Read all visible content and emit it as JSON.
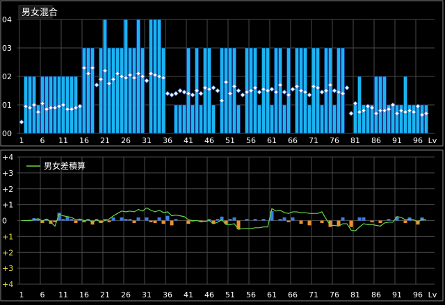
{
  "colors": {
    "background": "#000000",
    "panel_border": "#8a8a8a",
    "grid": "#4a4a4a",
    "axis_text": "#ffffff",
    "top_bar_fill": "#1ab4f0",
    "top_bar_stroke": "#0a2a8c",
    "diamond_fill": "#ffffff",
    "diamond_stroke": "#5a8ad8",
    "male_bar": "#3a7ee6",
    "female_bar": "#f0902a",
    "cumulative_line": "#6ad84a",
    "minus_tick_label": "#f0e04a",
    "title_bg": "#1a1a1a"
  },
  "chart_data": [
    {
      "type": "bar",
      "title": "男女混合",
      "x_tick_labels": [
        "1",
        "6",
        "11",
        "16",
        "21",
        "26",
        "31",
        "36",
        "41",
        "46",
        "51",
        "56",
        "61",
        "66",
        "71",
        "76",
        "81",
        "86",
        "91",
        "96",
        "Lv"
      ],
      "y_tick_labels": [
        "04",
        "03",
        "02",
        "01",
        "00"
      ],
      "ylim": [
        0,
        4
      ],
      "xlim": [
        0,
        100
      ],
      "grid": true,
      "x": [
        1,
        2,
        3,
        4,
        5,
        6,
        7,
        8,
        9,
        10,
        11,
        12,
        13,
        14,
        15,
        16,
        17,
        18,
        19,
        20,
        21,
        22,
        23,
        24,
        25,
        26,
        27,
        28,
        29,
        30,
        31,
        32,
        33,
        34,
        35,
        36,
        37,
        38,
        39,
        40,
        41,
        42,
        43,
        44,
        45,
        46,
        47,
        48,
        49,
        50,
        51,
        52,
        53,
        54,
        55,
        56,
        57,
        58,
        59,
        60,
        61,
        62,
        63,
        64,
        65,
        66,
        67,
        68,
        69,
        70,
        71,
        72,
        73,
        74,
        75,
        76,
        77,
        78,
        79,
        80,
        81,
        82,
        83,
        84,
        85,
        86,
        87,
        88,
        89,
        90,
        91,
        92,
        93,
        94,
        95,
        96,
        97,
        98
      ],
      "bar_values": [
        0,
        2,
        2,
        2,
        1,
        2,
        2,
        2,
        2,
        2,
        2,
        2,
        2,
        2,
        1,
        3,
        3,
        3,
        0,
        3,
        4,
        3,
        3,
        3,
        3,
        4,
        3,
        3,
        4,
        3,
        0,
        4,
        4,
        4,
        3,
        0,
        0,
        1,
        1,
        1,
        3,
        1,
        3,
        1,
        3,
        3,
        1,
        0,
        3,
        3,
        3,
        3,
        1,
        0,
        3,
        3,
        3,
        1,
        3,
        3,
        1,
        3,
        3,
        1,
        3,
        0,
        3,
        3,
        3,
        1,
        3,
        3,
        1,
        3,
        3,
        1,
        3,
        3,
        0,
        0,
        1,
        2,
        1,
        1,
        1,
        2,
        2,
        2,
        1,
        1,
        1,
        1,
        2,
        1,
        1,
        1,
        1,
        1
      ],
      "diamond_values": [
        0.4,
        0.95,
        0.9,
        1.0,
        0.75,
        1.05,
        0.85,
        0.9,
        0.9,
        0.95,
        1.0,
        0.85,
        0.85,
        0.9,
        0.95,
        2.3,
        2.1,
        2.3,
        1.7,
        1.9,
        2.2,
        1.75,
        1.9,
        2.1,
        2.0,
        1.95,
        2.05,
        1.95,
        2.1,
        2.0,
        1.85,
        2.1,
        2.05,
        2.0,
        1.95,
        1.4,
        1.35,
        1.4,
        1.5,
        1.45,
        1.4,
        1.35,
        1.5,
        1.4,
        1.6,
        1.55,
        1.6,
        1.5,
        1.15,
        1.8,
        1.4,
        1.65,
        1.5,
        1.35,
        1.45,
        1.5,
        1.6,
        1.45,
        1.55,
        1.5,
        1.55,
        1.45,
        1.7,
        1.45,
        1.35,
        1.55,
        1.65,
        1.5,
        1.45,
        1.35,
        1.65,
        1.6,
        1.45,
        1.5,
        1.7,
        1.5,
        1.45,
        1.4,
        1.6,
        0.7,
        1.05,
        0.75,
        0.8,
        0.95,
        0.9,
        0.7,
        0.8,
        0.8,
        0.85,
        1.0,
        0.7,
        0.8,
        0.75,
        0.8,
        0.75,
        0.95,
        0.65,
        0.7,
        0.85
      ]
    },
    {
      "type": "bar",
      "title": "",
      "legend": [
        "男女差積算"
      ],
      "legend_placement": "top-left",
      "x_tick_labels": [
        "1",
        "6",
        "11",
        "16",
        "21",
        "26",
        "31",
        "36",
        "41",
        "46",
        "51",
        "56",
        "61",
        "66",
        "71",
        "76",
        "81",
        "86",
        "91",
        "96",
        "Lv"
      ],
      "y_tick_labels": [
        "+4",
        "+3",
        "+2",
        "+1",
        "0",
        "+1",
        "+2",
        "+3",
        "+4"
      ],
      "ylim": [
        -4,
        4
      ],
      "xlim": [
        0,
        100
      ],
      "grid": true,
      "x": [
        1,
        2,
        3,
        4,
        5,
        6,
        7,
        8,
        9,
        10,
        11,
        12,
        13,
        14,
        15,
        16,
        17,
        18,
        19,
        20,
        21,
        22,
        23,
        24,
        25,
        26,
        27,
        28,
        29,
        30,
        31,
        32,
        33,
        34,
        35,
        36,
        37,
        38,
        39,
        40,
        41,
        42,
        43,
        44,
        45,
        46,
        47,
        48,
        49,
        50,
        51,
        52,
        53,
        54,
        55,
        56,
        57,
        58,
        59,
        60,
        61,
        62,
        63,
        64,
        65,
        66,
        67,
        68,
        69,
        70,
        71,
        72,
        73,
        74,
        75,
        76,
        77,
        78,
        79,
        80,
        81,
        82,
        83,
        84,
        85,
        86,
        87,
        88,
        89,
        90,
        91,
        92,
        93,
        94,
        95,
        96,
        97,
        98
      ],
      "diff_values": [
        0,
        0,
        0.05,
        0.15,
        0.1,
        -0.15,
        0.1,
        -0.2,
        -0.1,
        0.5,
        0.1,
        0.25,
        0.1,
        -0.15,
        0.1,
        -0.1,
        0.1,
        -0.25,
        0.1,
        -0.15,
        0.1,
        -0.1,
        0.2,
        0,
        0.2,
        0.1,
        0.1,
        -0.15,
        0.2,
        0,
        0.2,
        -0.1,
        -0.15,
        0.2,
        -0.2,
        0.3,
        -0.3,
        0.1,
        0,
        0,
        -0.2,
        -0.05,
        0,
        -0.1,
        0,
        0.1,
        -0.2,
        0.1,
        0.25,
        -0.2,
        0.1,
        0.2,
        -0.55,
        0,
        0.1,
        0,
        0.1,
        0,
        0.1,
        0,
        0.6,
        0,
        0.1,
        0.2,
        -0.1,
        0.2,
        0,
        -0.2,
        0,
        -0.3,
        0,
        0,
        -0.15,
        0,
        -0.4,
        0,
        -0.35,
        0.2,
        0,
        -0.4,
        0,
        0.2,
        0.2,
        0,
        -0.1,
        0,
        -0.15,
        0,
        0.1,
        0,
        0.25,
        0,
        -0.15,
        0.2,
        0,
        -0.25,
        0.2,
        0
      ],
      "cumulative": [
        0,
        0,
        0,
        0.15,
        0.25,
        0.1,
        0.2,
        0,
        -0.1,
        0.4,
        0.5,
        0.7,
        0.8,
        0.65,
        0.75,
        0.65,
        0.75,
        0.5,
        0.6,
        0.45,
        0.55,
        0.45,
        0.65,
        0.65,
        0.85,
        0.95,
        1.05,
        0.9,
        1.1,
        1.1,
        1.3,
        1.2,
        1.05,
        1.25,
        1.05,
        1.35,
        1.05,
        1.15,
        1.15,
        1.15,
        0.95,
        0.9,
        0.9,
        0.8,
        0.8,
        0.9,
        0.7,
        0.8,
        1.05,
        0.85,
        0.95,
        1.15,
        0.6,
        0.6,
        0.7,
        0.7,
        0.8,
        0.8,
        0.9,
        0.9,
        1.5,
        1.5,
        1.6,
        1.8,
        1.7,
        1.9,
        1.9,
        1.7,
        1.7,
        1.4,
        1.4,
        1.4,
        1.25,
        1.25,
        0.85,
        0.85,
        0.5,
        0.7,
        0.7,
        0.3,
        0.3,
        0.5,
        0.7,
        0.7,
        0.6,
        0.6,
        0.45,
        0.45,
        0.55,
        0.55,
        0.8,
        0.8,
        0.65,
        0.85,
        0.85,
        0.6,
        0.8,
        0.8
      ],
      "cumulative_display": [
        0,
        0,
        0,
        0.05,
        0.12,
        -0.02,
        0.1,
        -0.1,
        -0.35,
        0.4,
        0.3,
        0.25,
        0.2,
        0.05,
        0.1,
        0.0,
        0.05,
        -0.1,
        0.05,
        -0.1,
        0.0,
        0.1,
        0.3,
        0.45,
        0.6,
        0.55,
        0.6,
        0.55,
        0.7,
        0.6,
        0.8,
        0.65,
        0.55,
        0.65,
        0.5,
        0.55,
        0.3,
        0.35,
        0.3,
        0.25,
        0.05,
        0.0,
        0.0,
        -0.05,
        -0.05,
        0.0,
        -0.2,
        -0.1,
        0.05,
        -0.25,
        -0.25,
        -0.2,
        -0.55,
        -0.5,
        -0.5,
        -0.5,
        -0.45,
        -0.45,
        -0.4,
        -0.4,
        0.75,
        0.6,
        0.65,
        0.5,
        0.45,
        0.55,
        0.55,
        0.5,
        0.5,
        0.45,
        0.45,
        0.45,
        0.55,
        0.1,
        -0.3,
        -0.3,
        -0.35,
        -0.2,
        -0.2,
        -0.6,
        -0.65,
        -0.4,
        -0.2,
        -0.25,
        -0.25,
        -0.3,
        -0.35,
        -0.15,
        -0.1,
        -0.1,
        0.25,
        0.2,
        0.05,
        0.1,
        0.05,
        -0.1,
        0.1,
        0.05
      ]
    }
  ]
}
